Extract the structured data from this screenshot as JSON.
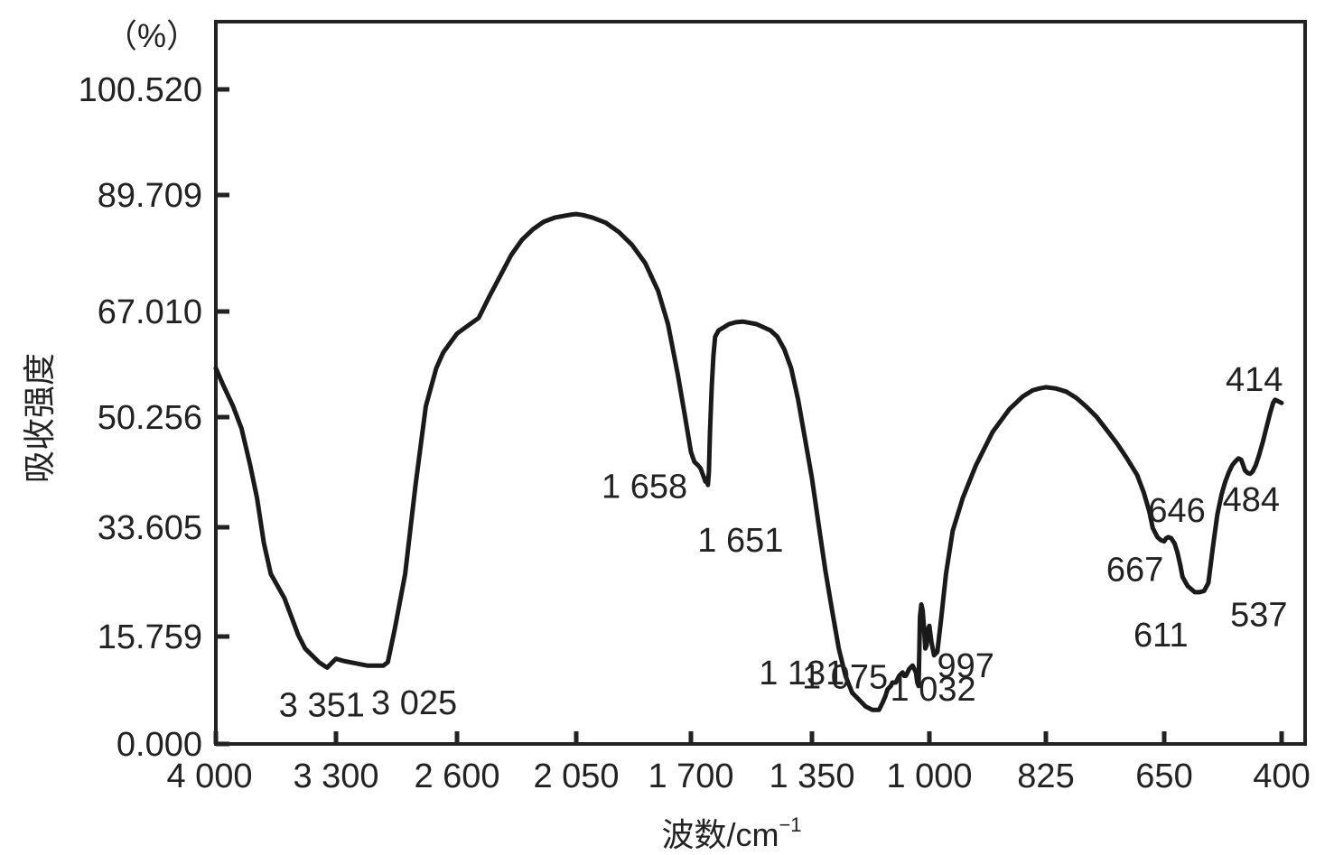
{
  "chart_data": {
    "type": "line",
    "title": "",
    "xlabel": "波数/cm",
    "xlabel_sup": "−1",
    "ylabel": "吸收强度",
    "y_unit": "（%）",
    "x_tick_labels": [
      "4 000",
      "3 300",
      "2 600",
      "2 050",
      "1 700",
      "1 350",
      "1 000",
      "825",
      "650",
      "400"
    ],
    "y_tick_labels": [
      "0.000",
      "15.759",
      "33.605",
      "50.256",
      "67.010",
      "89.709",
      "100.520"
    ],
    "y_tick_values": [
      0,
      15.759,
      33.605,
      50.256,
      67.01,
      89.709,
      100.52
    ],
    "x_scale": "piecewise",
    "ylim": [
      0,
      100.52
    ],
    "grid": false,
    "legend": "none",
    "colors": {
      "line": "#1a1a1a",
      "axis": "#222222",
      "background": "#ffffff"
    },
    "series": [
      {
        "x": [
          4000,
          3960,
          3900,
          3850,
          3800,
          3760,
          3720,
          3680,
          3640,
          3600,
          3560,
          3520,
          3480,
          3440,
          3400,
          3370,
          3351,
          3320,
          3300,
          3260,
          3220,
          3180,
          3120,
          3060,
          3025,
          3000,
          2960,
          2900,
          2840,
          2780,
          2720,
          2680,
          2640,
          2600,
          2560,
          2500,
          2450,
          2400,
          2350,
          2300,
          2250,
          2200,
          2150,
          2100,
          2070,
          2050,
          2030,
          2000,
          1960,
          1920,
          1880,
          1840,
          1800,
          1770,
          1740,
          1720,
          1700,
          1690,
          1680,
          1672,
          1665,
          1658,
          1655,
          1651,
          1648,
          1645,
          1640,
          1635,
          1630,
          1620,
          1605,
          1590,
          1570,
          1550,
          1530,
          1510,
          1490,
          1470,
          1450,
          1430,
          1410,
          1390,
          1370,
          1350,
          1330,
          1310,
          1290,
          1270,
          1250,
          1230,
          1210,
          1190,
          1170,
          1150,
          1140,
          1131,
          1125,
          1115,
          1110,
          1100,
          1090,
          1080,
          1075,
          1070,
          1060,
          1050,
          1045,
          1040,
          1036,
          1032,
          1028,
          1024,
          1020,
          1016,
          1012,
          1008,
          1004,
          1000,
          997,
          993,
          988,
          982,
          975,
          965,
          950,
          930,
          905,
          880,
          860,
          845,
          835,
          825,
          810,
          795,
          780,
          765,
          750,
          735,
          720,
          705,
          690,
          680,
          672,
          667,
          660,
          655,
          650,
          646,
          641,
          635,
          628,
          622,
          616,
          611,
          600,
          585,
          575,
          565,
          556,
          547,
          537,
          528,
          520,
          512,
          505,
          498,
          492,
          486,
          482,
          478,
          472,
          467,
          462,
          455,
          448,
          440,
          432,
          424,
          418,
          414,
          408,
          400
        ],
        "y": [
          58,
          55.5,
          52,
          48.5,
          43,
          38,
          31,
          26,
          24,
          22,
          19,
          16,
          14,
          13,
          12,
          11.5,
          11.2,
          12,
          12.5,
          12.2,
          12,
          11.8,
          11.5,
          11.5,
          11.5,
          12,
          17,
          26,
          40,
          52,
          58,
          60.5,
          62,
          63.5,
          64.5,
          66,
          70,
          74,
          78,
          81,
          83,
          84.5,
          85.3,
          85.7,
          85.9,
          86,
          85.8,
          85.3,
          84.3,
          82.5,
          80,
          76.5,
          71,
          65,
          57,
          51,
          45,
          43.5,
          43,
          42.5,
          41.5,
          40.5,
          41,
          40,
          42,
          48,
          55,
          60,
          63,
          64,
          64.5,
          65,
          65.3,
          65.4,
          65.2,
          65,
          64.5,
          64,
          63,
          61,
          58,
          53,
          47,
          41,
          34,
          26.5,
          20,
          14,
          10,
          7.5,
          6.5,
          5.5,
          5,
          5,
          6,
          7,
          8,
          8.5,
          9,
          9,
          10,
          10.5,
          10,
          10,
          11,
          11.5,
          11,
          10.5,
          9,
          8.5,
          19,
          21,
          20,
          17,
          14,
          14.5,
          17,
          17.5,
          15,
          13,
          13.5,
          19,
          26,
          33,
          38,
          43,
          48,
          51.5,
          53.5,
          54.5,
          54.8,
          55,
          54.8,
          54.3,
          53.3,
          51.9,
          50.3,
          48.3,
          46.3,
          44,
          41.5,
          38.8,
          36,
          33.5,
          32,
          31.5,
          31.3,
          31.8,
          32,
          31.8,
          31,
          29.5,
          27.5,
          25.5,
          24,
          23,
          23,
          23.2,
          24.5,
          30,
          35.5,
          38.5,
          40.5,
          42,
          43,
          43.6,
          44,
          43.8,
          43,
          42.2,
          41.8,
          41.7,
          42,
          43,
          44.5,
          46.5,
          48.8,
          51,
          52.5,
          53,
          52.8,
          52.5
        ]
      }
    ],
    "annotations": [
      {
        "text": "3 351",
        "x": 3351,
        "y": 11.2
      },
      {
        "text": "3 025",
        "x": 3025,
        "y": 11.5
      },
      {
        "text": "1 658",
        "x": 1658,
        "y": 40.5
      },
      {
        "text": "1 651",
        "x": 1651,
        "y": 40
      },
      {
        "text": "1 131",
        "x": 1131,
        "y": 6.5
      },
      {
        "text": "1 075",
        "x": 1075,
        "y": 10
      },
      {
        "text": "1 032",
        "x": 1032,
        "y": 8.5
      },
      {
        "text": "997",
        "x": 997,
        "y": 13.5
      },
      {
        "text": "667",
        "x": 667,
        "y": 31.3
      },
      {
        "text": "646",
        "x": 646,
        "y": 31.8
      },
      {
        "text": "611",
        "x": 611,
        "y": 23
      },
      {
        "text": "537",
        "x": 537,
        "y": 24.5
      },
      {
        "text": "484",
        "x": 484,
        "y": 41.8
      },
      {
        "text": "414",
        "x": 414,
        "y": 53
      }
    ]
  }
}
